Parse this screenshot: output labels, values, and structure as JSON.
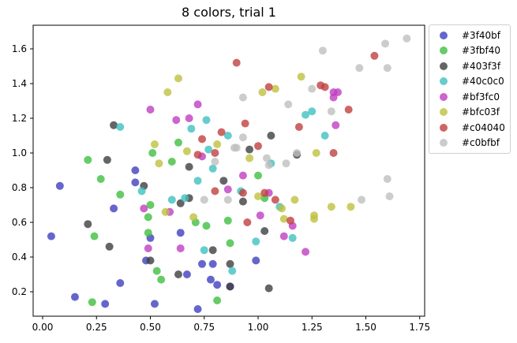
{
  "chart_data": {
    "type": "scatter",
    "title": "8 colors, trial 1",
    "xlabel": "",
    "ylabel": "",
    "xlim": [
      -0.04,
      1.78
    ],
    "ylim": [
      0.01,
      1.75
    ],
    "xticks": [
      "0.00",
      "0.25",
      "0.50",
      "0.75",
      "1.00",
      "1.25",
      "1.50",
      "1.75"
    ],
    "yticks": [
      "0.2",
      "0.4",
      "0.6",
      "0.8",
      "1.0",
      "1.2",
      "1.4",
      "1.6"
    ],
    "grid": false,
    "legend_position": "outside upper right",
    "series": [
      {
        "name": "#3f40bf",
        "color": "#3f40bf",
        "points": [
          [
            0.04,
            0.52
          ],
          [
            0.08,
            0.81
          ],
          [
            0.15,
            0.17
          ],
          [
            0.29,
            0.13
          ],
          [
            0.33,
            0.68
          ],
          [
            0.36,
            0.25
          ],
          [
            0.43,
            0.83
          ],
          [
            0.43,
            0.9
          ],
          [
            0.48,
            0.38
          ],
          [
            0.5,
            0.51
          ],
          [
            0.52,
            0.13
          ],
          [
            0.64,
            0.54
          ],
          [
            0.67,
            0.3
          ],
          [
            0.72,
            0.1
          ],
          [
            0.74,
            0.36
          ],
          [
            0.78,
            0.27
          ],
          [
            0.79,
            0.36
          ],
          [
            0.81,
            0.24
          ],
          [
            0.87,
            0.23
          ],
          [
            0.99,
            0.38
          ]
        ]
      },
      {
        "name": "#3fbf40",
        "color": "#3fbf40",
        "points": [
          [
            0.21,
            0.96
          ],
          [
            0.23,
            0.14
          ],
          [
            0.24,
            0.52
          ],
          [
            0.27,
            0.85
          ],
          [
            0.36,
            0.76
          ],
          [
            0.49,
            0.54
          ],
          [
            0.49,
            0.63
          ],
          [
            0.5,
            0.7
          ],
          [
            0.51,
            1.0
          ],
          [
            0.53,
            0.32
          ],
          [
            0.55,
            0.27
          ],
          [
            0.6,
            0.95
          ],
          [
            0.63,
            1.06
          ],
          [
            0.71,
            0.6
          ],
          [
            0.76,
            0.58
          ],
          [
            0.81,
            0.15
          ],
          [
            0.86,
            0.61
          ],
          [
            0.87,
            0.48
          ],
          [
            1.0,
            0.87
          ],
          [
            1.03,
            0.74
          ]
        ]
      },
      {
        "name": "#403f3f",
        "color": "#403f3f",
        "points": [
          [
            0.21,
            0.59
          ],
          [
            0.3,
            0.96
          ],
          [
            0.31,
            0.46
          ],
          [
            0.33,
            1.16
          ],
          [
            0.47,
            0.81
          ],
          [
            0.5,
            0.38
          ],
          [
            0.63,
            0.3
          ],
          [
            0.64,
            0.71
          ],
          [
            0.68,
            0.74
          ],
          [
            0.68,
            0.92
          ],
          [
            0.79,
            0.44
          ],
          [
            0.84,
            0.84
          ],
          [
            0.87,
            0.36
          ],
          [
            0.87,
            0.23
          ],
          [
            0.93,
            0.72
          ],
          [
            0.96,
            1.02
          ],
          [
            1.03,
            0.55
          ],
          [
            1.05,
            0.22
          ],
          [
            1.06,
            1.1
          ],
          [
            1.18,
            0.99
          ]
        ]
      },
      {
        "name": "#40c0c0",
        "color": "#40c0c0",
        "points": [
          [
            0.36,
            1.15
          ],
          [
            0.46,
            0.78
          ],
          [
            0.6,
            0.73
          ],
          [
            0.66,
            0.74
          ],
          [
            0.69,
            1.14
          ],
          [
            0.72,
            0.84
          ],
          [
            0.75,
            0.44
          ],
          [
            0.76,
            1.19
          ],
          [
            0.77,
            1.02
          ],
          [
            0.79,
            0.91
          ],
          [
            0.86,
            1.1
          ],
          [
            0.88,
            0.32
          ],
          [
            0.92,
            0.78
          ],
          [
            0.99,
            0.49
          ],
          [
            1.06,
            0.94
          ],
          [
            1.1,
            0.69
          ],
          [
            1.16,
            0.51
          ],
          [
            1.22,
            1.22
          ],
          [
            1.25,
            1.24
          ],
          [
            1.31,
            1.1
          ]
        ]
      },
      {
        "name": "#bf3fc0",
        "color": "#bf3fc0",
        "points": [
          [
            0.47,
            0.68
          ],
          [
            0.49,
            0.45
          ],
          [
            0.5,
            1.25
          ],
          [
            0.59,
            0.66
          ],
          [
            0.62,
            1.19
          ],
          [
            0.64,
            0.45
          ],
          [
            0.68,
            1.2
          ],
          [
            0.72,
            1.28
          ],
          [
            0.74,
            0.98
          ],
          [
            0.86,
            0.79
          ],
          [
            0.93,
            0.87
          ],
          [
            1.01,
            0.64
          ],
          [
            1.05,
            0.77
          ],
          [
            1.12,
            0.52
          ],
          [
            1.16,
            0.58
          ],
          [
            1.22,
            0.43
          ],
          [
            1.35,
            1.32
          ],
          [
            1.35,
            1.35
          ],
          [
            1.37,
            1.35
          ],
          [
            1.36,
            1.16
          ]
        ]
      },
      {
        "name": "#bfc03f",
        "color": "#bfc03f",
        "points": [
          [
            0.52,
            1.05
          ],
          [
            0.54,
            0.94
          ],
          [
            0.57,
            0.66
          ],
          [
            0.58,
            1.35
          ],
          [
            0.63,
            1.43
          ],
          [
            0.67,
            1.01
          ],
          [
            0.7,
            0.63
          ],
          [
            0.81,
            1.05
          ],
          [
            0.96,
            0.97
          ],
          [
            1.0,
            0.75
          ],
          [
            1.02,
            1.35
          ],
          [
            1.08,
            1.37
          ],
          [
            1.11,
            0.68
          ],
          [
            1.12,
            0.62
          ],
          [
            1.17,
            0.73
          ],
          [
            1.2,
            1.44
          ],
          [
            1.26,
            0.62
          ],
          [
            1.26,
            0.64
          ],
          [
            1.27,
            1.0
          ],
          [
            1.34,
            0.69
          ],
          [
            1.43,
            0.69
          ]
        ]
      },
      {
        "name": "#c04040",
        "color": "#c04040",
        "points": [
          [
            0.72,
            0.99
          ],
          [
            0.74,
            1.08
          ],
          [
            0.8,
            0.78
          ],
          [
            0.8,
            1.0
          ],
          [
            0.83,
            1.12
          ],
          [
            0.9,
            1.52
          ],
          [
            0.93,
            0.77
          ],
          [
            0.94,
            1.17
          ],
          [
            0.95,
            0.6
          ],
          [
            1.0,
            1.04
          ],
          [
            1.03,
            0.77
          ],
          [
            1.05,
            1.38
          ],
          [
            1.08,
            0.73
          ],
          [
            1.15,
            0.61
          ],
          [
            1.19,
            1.15
          ],
          [
            1.29,
            1.39
          ],
          [
            1.31,
            1.38
          ],
          [
            1.35,
            1.0
          ],
          [
            1.42,
            1.25
          ],
          [
            1.54,
            1.56
          ]
        ]
      },
      {
        "name": "#c0bfbf",
        "color": "#c0bfbf",
        "points": [
          [
            0.75,
            0.73
          ],
          [
            0.8,
            0.95
          ],
          [
            0.86,
            0.73
          ],
          [
            0.89,
            1.03
          ],
          [
            0.9,
            1.03
          ],
          [
            0.93,
            1.32
          ],
          [
            0.93,
            1.09
          ],
          [
            1.04,
            0.97
          ],
          [
            1.05,
            0.93
          ],
          [
            1.13,
            0.94
          ],
          [
            1.14,
            1.28
          ],
          [
            1.18,
            1.0
          ],
          [
            1.25,
            1.37
          ],
          [
            1.3,
            1.59
          ],
          [
            1.34,
            1.24
          ],
          [
            1.47,
            1.49
          ],
          [
            1.48,
            0.73
          ],
          [
            1.59,
            1.63
          ],
          [
            1.6,
            1.49
          ],
          [
            1.6,
            0.85
          ],
          [
            1.61,
            0.75
          ],
          [
            1.69,
            1.66
          ]
        ]
      }
    ]
  }
}
